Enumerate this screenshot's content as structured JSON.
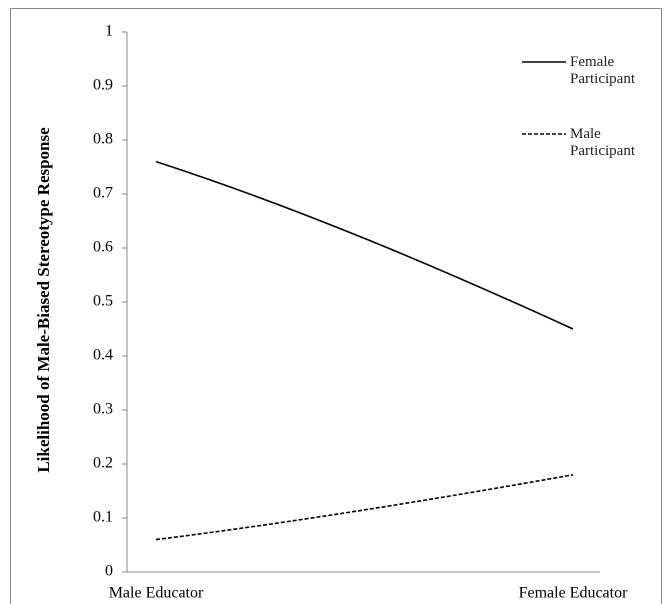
{
  "chart_data": {
    "type": "line",
    "y_label": "Likelihood of Male-Biased Stereotype Response",
    "categories": [
      "Male Educator",
      "Female Educator"
    ],
    "series": [
      {
        "name": "Female Participant",
        "color": "#000000",
        "style": "solid",
        "values": [
          0.76,
          0.45
        ]
      },
      {
        "name": "Male Participant",
        "color": "#000000",
        "style": "dashed",
        "values": [
          0.06,
          0.18
        ]
      }
    ],
    "ylim": [
      0,
      1
    ],
    "yticks": [
      0,
      0.1,
      0.2,
      0.3,
      0.4,
      0.5,
      0.6,
      0.7,
      0.8,
      0.9,
      1
    ],
    "legend": "top-right"
  }
}
